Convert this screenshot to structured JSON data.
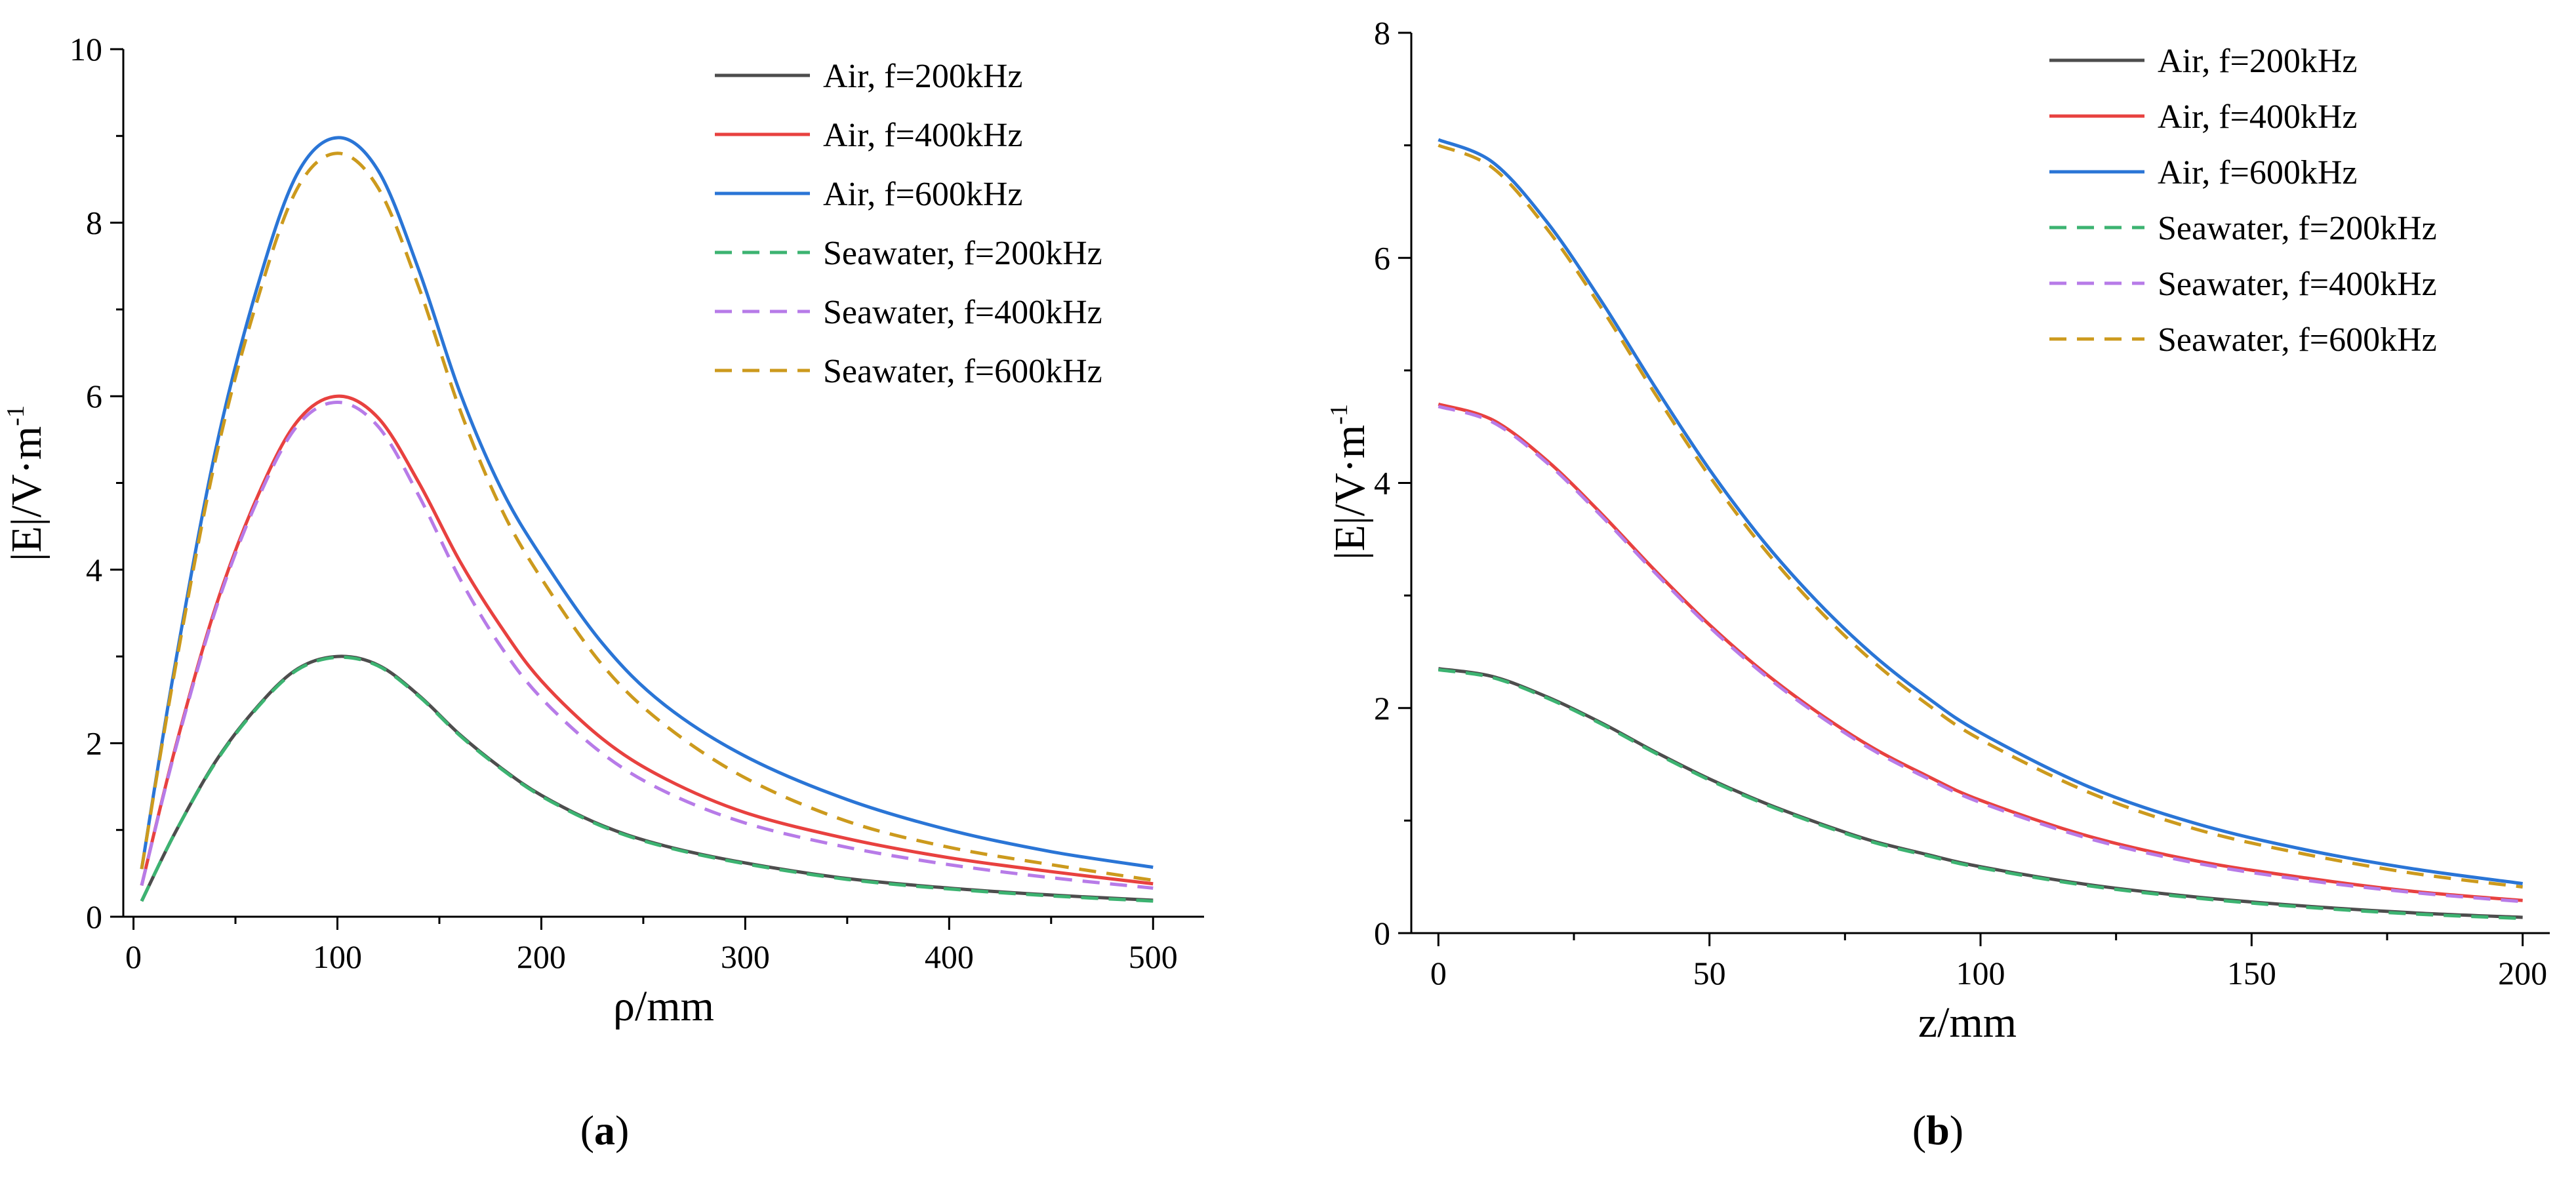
{
  "chart_data": [
    {
      "type": "line",
      "panel_label": "a",
      "xlabel": "ρ/mm",
      "ylabel": "|E|/V·m",
      "ylabel_sup": "-1",
      "xlim": [
        -5,
        525
      ],
      "ylim": [
        0,
        10
      ],
      "xticks": [
        0,
        100,
        200,
        300,
        400,
        500
      ],
      "yticks": [
        0,
        2,
        4,
        6,
        8,
        10
      ],
      "legend_position": "top-right",
      "series": [
        {
          "name": "Air, f=200kHz",
          "color": "#4d4d4d",
          "dash": "solid",
          "x": [
            4,
            20,
            40,
            60,
            80,
            100,
            120,
            140,
            160,
            180,
            200,
            230,
            260,
            300,
            350,
            400,
            450,
            500
          ],
          "y": [
            0.18,
            0.95,
            1.78,
            2.4,
            2.85,
            3.0,
            2.9,
            2.55,
            2.1,
            1.72,
            1.4,
            1.05,
            0.82,
            0.62,
            0.44,
            0.33,
            0.25,
            0.19
          ]
        },
        {
          "name": "Air, f=400kHz",
          "color": "#e8413f",
          "dash": "solid",
          "x": [
            4,
            20,
            40,
            60,
            80,
            100,
            120,
            140,
            160,
            180,
            200,
            230,
            260,
            300,
            350,
            400,
            450,
            500
          ],
          "y": [
            0.36,
            1.9,
            3.55,
            4.8,
            5.7,
            6.0,
            5.75,
            5.0,
            4.1,
            3.35,
            2.72,
            2.05,
            1.6,
            1.2,
            0.9,
            0.68,
            0.52,
            0.38
          ]
        },
        {
          "name": "Air, f=600kHz",
          "color": "#2a75d6",
          "dash": "solid",
          "x": [
            4,
            20,
            40,
            60,
            80,
            100,
            120,
            140,
            160,
            180,
            200,
            230,
            260,
            300,
            350,
            400,
            450,
            500
          ],
          "y": [
            0.55,
            2.85,
            5.35,
            7.2,
            8.55,
            8.98,
            8.6,
            7.45,
            6.05,
            4.95,
            4.15,
            3.15,
            2.45,
            1.85,
            1.35,
            1.0,
            0.75,
            0.57
          ]
        },
        {
          "name": "Seawater, f=200kHz",
          "color": "#3cb371",
          "dash": "dashed",
          "x": [
            4,
            20,
            40,
            60,
            80,
            100,
            120,
            140,
            160,
            180,
            200,
            230,
            260,
            300,
            350,
            400,
            450,
            500
          ],
          "y": [
            0.18,
            0.95,
            1.77,
            2.39,
            2.84,
            2.99,
            2.89,
            2.54,
            2.09,
            1.71,
            1.39,
            1.04,
            0.81,
            0.61,
            0.43,
            0.32,
            0.24,
            0.18
          ]
        },
        {
          "name": "Seawater, f=400kHz",
          "color": "#b77be8",
          "dash": "dashed",
          "x": [
            4,
            20,
            40,
            60,
            80,
            100,
            120,
            140,
            160,
            180,
            200,
            230,
            260,
            300,
            350,
            400,
            450,
            500
          ],
          "y": [
            0.36,
            1.88,
            3.52,
            4.76,
            5.65,
            5.93,
            5.65,
            4.85,
            3.9,
            3.12,
            2.52,
            1.88,
            1.45,
            1.08,
            0.8,
            0.6,
            0.45,
            0.33
          ]
        },
        {
          "name": "Seawater, f=600kHz",
          "color": "#cc9a1d",
          "dash": "dashed",
          "x": [
            4,
            20,
            40,
            60,
            80,
            100,
            120,
            140,
            160,
            180,
            200,
            230,
            260,
            300,
            350,
            400,
            450,
            500
          ],
          "y": [
            0.55,
            2.8,
            5.25,
            7.05,
            8.38,
            8.8,
            8.4,
            7.25,
            5.85,
            4.72,
            3.9,
            2.9,
            2.22,
            1.6,
            1.1,
            0.8,
            0.6,
            0.42
          ]
        }
      ]
    },
    {
      "type": "line",
      "panel_label": "b",
      "xlabel": "z/mm",
      "ylabel": "|E|/V·m",
      "ylabel_sup": "-1",
      "xlim": [
        -5,
        205
      ],
      "ylim": [
        0,
        8
      ],
      "xticks": [
        0,
        50,
        100,
        150,
        200
      ],
      "yticks": [
        0,
        2,
        4,
        6,
        8
      ],
      "legend_position": "top-right",
      "series": [
        {
          "name": "Air, f=200kHz",
          "color": "#4d4d4d",
          "dash": "solid",
          "x": [
            0,
            10,
            20,
            30,
            40,
            50,
            60,
            70,
            80,
            90,
            100,
            120,
            140,
            160,
            180,
            200
          ],
          "y": [
            2.35,
            2.28,
            2.1,
            1.87,
            1.61,
            1.37,
            1.16,
            0.98,
            0.82,
            0.7,
            0.59,
            0.43,
            0.32,
            0.24,
            0.18,
            0.14
          ]
        },
        {
          "name": "Air, f=400kHz",
          "color": "#e8413f",
          "dash": "solid",
          "x": [
            0,
            10,
            20,
            30,
            40,
            50,
            60,
            70,
            80,
            90,
            100,
            120,
            140,
            160,
            180,
            200
          ],
          "y": [
            4.7,
            4.56,
            4.2,
            3.73,
            3.22,
            2.74,
            2.32,
            1.96,
            1.65,
            1.4,
            1.18,
            0.86,
            0.64,
            0.49,
            0.37,
            0.29
          ]
        },
        {
          "name": "Air, f=600kHz",
          "color": "#2a75d6",
          "dash": "solid",
          "x": [
            0,
            10,
            20,
            30,
            40,
            50,
            60,
            70,
            80,
            90,
            100,
            120,
            140,
            160,
            180,
            200
          ],
          "y": [
            7.05,
            6.85,
            6.32,
            5.62,
            4.85,
            4.12,
            3.48,
            2.94,
            2.48,
            2.1,
            1.78,
            1.3,
            0.97,
            0.74,
            0.57,
            0.44
          ]
        },
        {
          "name": "Seawater, f=200kHz",
          "color": "#3cb371",
          "dash": "dashed",
          "x": [
            0,
            10,
            20,
            30,
            40,
            50,
            60,
            70,
            80,
            90,
            100,
            120,
            140,
            160,
            180,
            200
          ],
          "y": [
            2.34,
            2.27,
            2.09,
            1.86,
            1.6,
            1.36,
            1.15,
            0.97,
            0.81,
            0.69,
            0.58,
            0.42,
            0.31,
            0.23,
            0.17,
            0.13
          ]
        },
        {
          "name": "Seawater, f=400kHz",
          "color": "#b77be8",
          "dash": "dashed",
          "x": [
            0,
            10,
            20,
            30,
            40,
            50,
            60,
            70,
            80,
            90,
            100,
            120,
            140,
            160,
            180,
            200
          ],
          "y": [
            4.68,
            4.54,
            4.18,
            3.71,
            3.2,
            2.72,
            2.3,
            1.94,
            1.63,
            1.38,
            1.16,
            0.84,
            0.62,
            0.47,
            0.36,
            0.28
          ]
        },
        {
          "name": "Seawater, f=600kHz",
          "color": "#cc9a1d",
          "dash": "dashed",
          "x": [
            0,
            10,
            20,
            30,
            40,
            50,
            60,
            70,
            80,
            90,
            100,
            120,
            140,
            160,
            180,
            200
          ],
          "y": [
            7.0,
            6.8,
            6.26,
            5.56,
            4.79,
            4.06,
            3.42,
            2.88,
            2.42,
            2.04,
            1.72,
            1.25,
            0.92,
            0.7,
            0.53,
            0.41
          ]
        }
      ]
    }
  ]
}
